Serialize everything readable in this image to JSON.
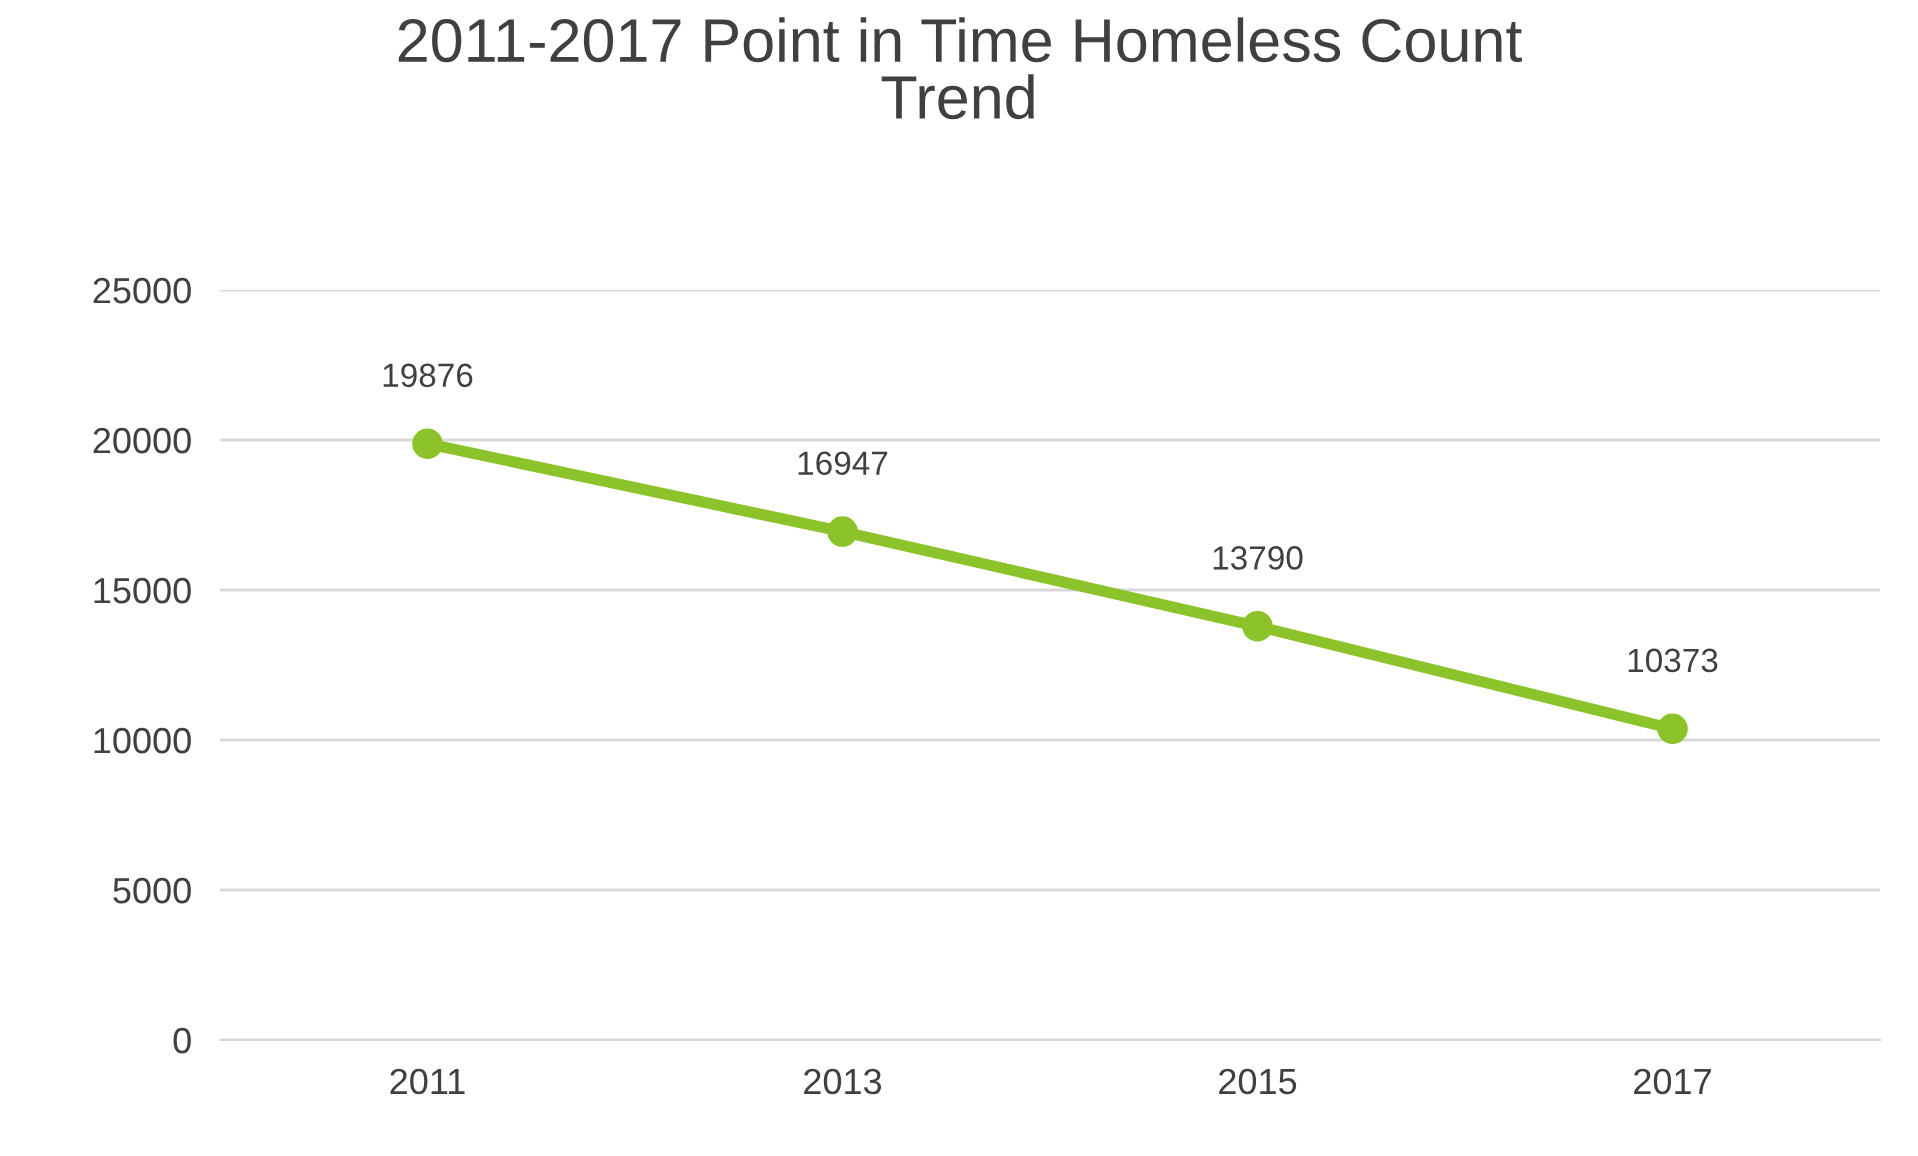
{
  "chart_data": {
    "type": "line",
    "title": "2011-2017 Point in Time Homeless Count\nTrend",
    "categories": [
      "2011",
      "2013",
      "2015",
      "2017"
    ],
    "series": [
      {
        "color": "#8cc22a",
        "values": [
          19876,
          16947,
          13790,
          10373
        ]
      }
    ],
    "ylim": [
      0,
      25000
    ],
    "yticks": [
      0,
      5000,
      10000,
      15000,
      20000,
      25000
    ],
    "grid": "y",
    "marker": "circle",
    "line_style": "solid",
    "data_labels": true,
    "legend": false
  }
}
